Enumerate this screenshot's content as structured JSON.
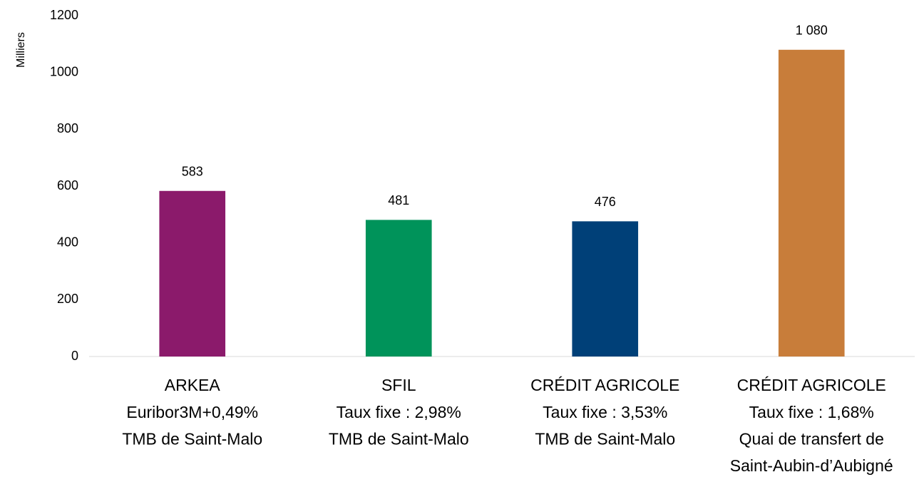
{
  "chart_data": {
    "type": "bar",
    "y_label": "Milliers",
    "categories": [
      [
        "ARKEA",
        "Euribor3M+0,49%",
        "TMB de Saint-Malo"
      ],
      [
        "SFIL",
        "Taux fixe : 2,98%",
        "TMB de Saint-Malo"
      ],
      [
        "CRÉDIT AGRICOLE",
        "Taux fixe : 3,53%",
        "TMB de Saint-Malo"
      ],
      [
        "CRÉDIT AGRICOLE",
        "Taux fixe : 1,68%",
        "Quai de transfert de",
        "Saint-Aubin-d’Aubigné"
      ]
    ],
    "values": [
      583,
      481,
      476,
      1080
    ],
    "value_labels": [
      "583",
      "481",
      "476",
      "1 080"
    ],
    "colors": [
      "#8b1a6b",
      "#00935a",
      "#004078",
      "#c87d3a"
    ],
    "ylim": [
      0,
      1200
    ],
    "yticks": [
      0,
      200,
      400,
      600,
      800,
      1000,
      1200
    ],
    "grid": false
  }
}
